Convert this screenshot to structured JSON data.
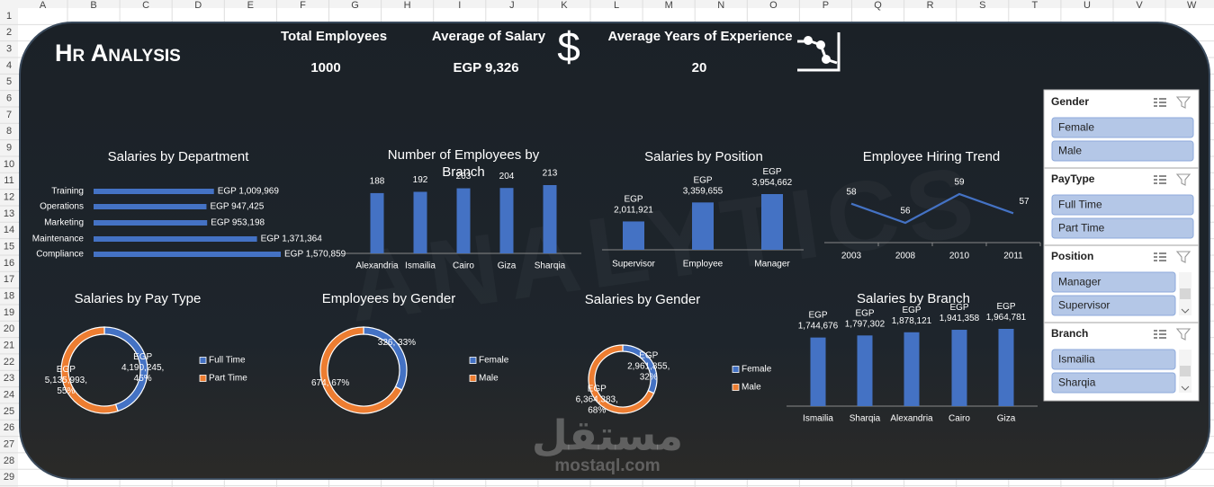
{
  "spreadsheet": {
    "columns": [
      "A",
      "B",
      "C",
      "D",
      "E",
      "F",
      "G",
      "H",
      "I",
      "J",
      "K",
      "L",
      "M",
      "N",
      "O",
      "P",
      "Q",
      "R",
      "S",
      "T",
      "U",
      "V",
      "W"
    ],
    "rows": [
      1,
      2,
      3,
      4,
      5,
      6,
      7,
      8,
      9,
      10,
      11,
      12,
      13,
      14,
      15,
      16,
      17,
      18,
      19,
      20,
      21,
      22,
      23,
      24,
      25,
      26,
      27,
      28,
      29
    ]
  },
  "header": {
    "title": "Hr Analysis",
    "currency_symbol": "$",
    "kpis": [
      {
        "label": "Total Employees",
        "value": 1000
      },
      {
        "label": "Average of Salary",
        "value": 9326,
        "value_label": "EGP 9,326"
      },
      {
        "label": "Average Years of Experience",
        "value": 20
      }
    ]
  },
  "chart_data": [
    {
      "type": "hbar",
      "title": "Salaries by Department",
      "color": "#4472c4",
      "categories": [
        "Training",
        "Operations",
        "Marketing",
        "Maintenance",
        "Compliance"
      ],
      "values": [
        1009969,
        947425,
        953198,
        1371364,
        1570859
      ],
      "value_labels": [
        "EGP 1,009,969",
        "EGP 947,425",
        "EGP 953,198",
        "EGP 1,371,364",
        "EGP 1,570,859"
      ]
    },
    {
      "type": "bar",
      "title": "Number of Employees by Branch",
      "color": "#4472c4",
      "categories": [
        "Alexandria",
        "Ismailia",
        "Cairo",
        "Giza",
        "Sharqia"
      ],
      "values": [
        188,
        192,
        203,
        204,
        213
      ]
    },
    {
      "type": "bar",
      "title": "Salaries by Position",
      "color": "#4472c4",
      "categories": [
        "Supervisor",
        "Employee",
        "Manager"
      ],
      "values": [
        2011921,
        3359655,
        3954662
      ],
      "value_labels": [
        "EGP 2,011,921",
        "EGP 3,359,655",
        "EGP 3,954,662"
      ]
    },
    {
      "type": "line",
      "title": "Employee Hiring Trend",
      "color": "#4472c4",
      "categories": [
        "2003",
        "2008",
        "2010",
        "2011"
      ],
      "values": [
        58,
        56,
        59,
        57
      ]
    },
    {
      "type": "pie",
      "title": "Salaries by Pay Type",
      "colors": [
        "#4472c4",
        "#ed7d31"
      ],
      "categories": [
        "Full Time",
        "Part Time"
      ],
      "values": [
        4190245,
        5135993
      ],
      "value_labels": [
        "EGP 4,190,245, 45%",
        "EGP 5,135,993, 55%"
      ]
    },
    {
      "type": "pie",
      "title": "Employees by Gender",
      "colors": [
        "#4472c4",
        "#ed7d31"
      ],
      "categories": [
        "Female",
        "Male"
      ],
      "values": [
        326,
        674
      ],
      "value_labels": [
        "326, 33%",
        "674, 67%"
      ]
    },
    {
      "type": "pie",
      "title": "Salaries by Gender",
      "colors": [
        "#4472c4",
        "#ed7d31"
      ],
      "categories": [
        "Female",
        "Male"
      ],
      "values": [
        2961855,
        6364383
      ],
      "value_labels": [
        "EGP 2,961,855, 32%",
        "EGP 6,364,383, 68%"
      ]
    },
    {
      "type": "bar",
      "title": "Salaries by Branch",
      "color": "#4472c4",
      "categories": [
        "Ismailia",
        "Sharqia",
        "Alexandria",
        "Cairo",
        "Giza"
      ],
      "values": [
        1744676,
        1797302,
        1878121,
        1941358,
        1964781
      ],
      "value_labels": [
        "EGP 1,744,676",
        "EGP 1,797,302",
        "EGP 1,878,121",
        "EGP 1,941,358",
        "EGP 1,964,781"
      ]
    }
  ],
  "slicers": [
    {
      "title": "Gender",
      "items": [
        "Female",
        "Male"
      ]
    },
    {
      "title": "PayType",
      "items": [
        "Full Time",
        "Part Time"
      ]
    },
    {
      "title": "Position",
      "items": [
        "Manager",
        "Supervisor"
      ]
    },
    {
      "title": "Branch",
      "items": [
        "Ismailia",
        "Sharqia"
      ]
    }
  ],
  "background_text": "ANALYTICS",
  "watermark": {
    "arabic": "مستقل",
    "latin": "mostaql.com"
  }
}
